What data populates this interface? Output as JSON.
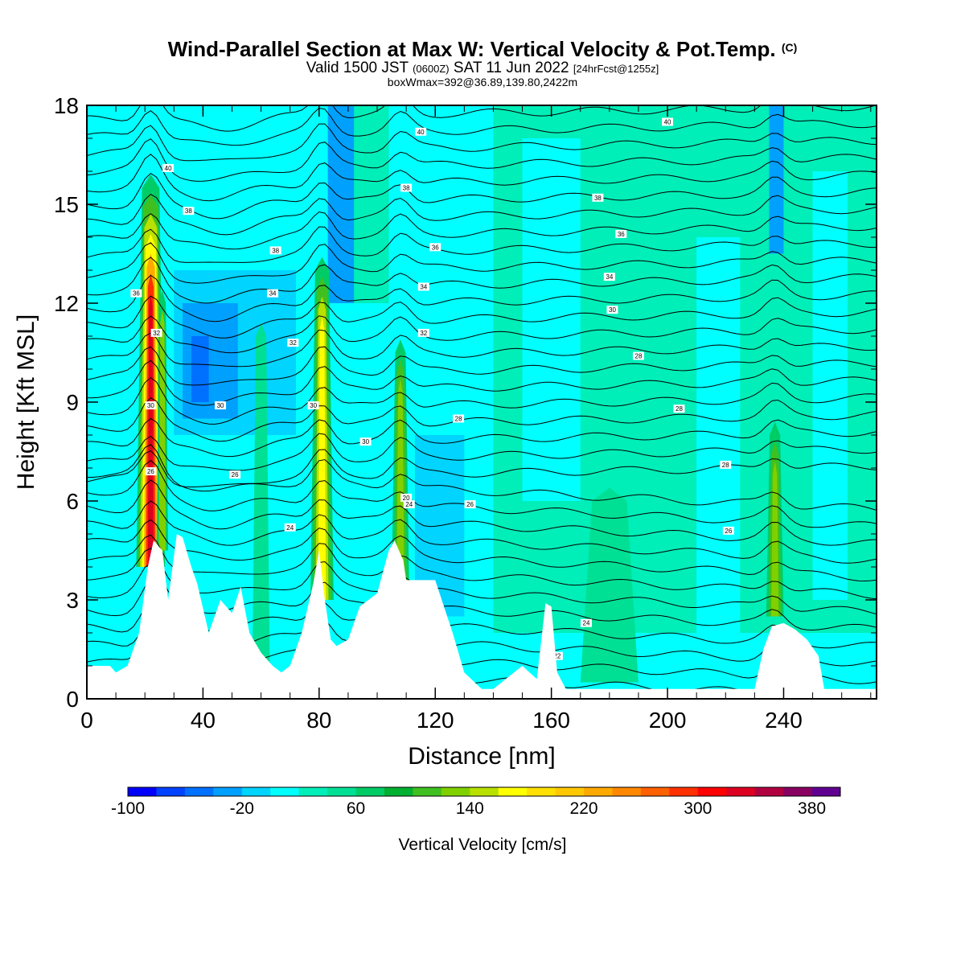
{
  "title": {
    "main": "Wind-Parallel Section at Max W: Vertical Velocity & Pot.Temp.",
    "copyright": "(C)",
    "valid_prefix": "Valid 1500 JST",
    "valid_utc": "(0600Z)",
    "valid_date": "SAT 11 Jun 2022",
    "forecast": "[24hrFcst@1255z]",
    "box_info": "boxWmax=392@36.89,139.80,2422m"
  },
  "chart_data": {
    "type": "heatmap",
    "xlabel": "Distance [nm]",
    "ylabel": "Height [Kft MSL]",
    "xlim": [
      0,
      272
    ],
    "ylim": [
      0,
      18
    ],
    "x_ticks": [
      0,
      40,
      80,
      120,
      160,
      200,
      240
    ],
    "y_ticks": [
      0,
      3,
      6,
      9,
      12,
      15,
      18
    ],
    "colorbar": {
      "title": "Vertical Velocity [cm/s]",
      "tick_labels": [
        -100,
        -20,
        60,
        140,
        220,
        300,
        380
      ],
      "bounds": [
        -100,
        400
      ],
      "step": 20,
      "colors": [
        "#0000ff",
        "#0040ff",
        "#0070ff",
        "#00a0ff",
        "#00d4ff",
        "#00ffff",
        "#00eeb8",
        "#00e095",
        "#00cc66",
        "#00b030",
        "#40c020",
        "#80d000",
        "#b8e000",
        "#ffff00",
        "#ffe000",
        "#ffc800",
        "#ffaa00",
        "#ff8800",
        "#ff6000",
        "#ff3000",
        "#ff0000",
        "#dd0020",
        "#b00040",
        "#880060",
        "#600090"
      ]
    },
    "theta_contours": {
      "labels": [
        "40",
        "40",
        "40",
        "38",
        "38",
        "38",
        "38",
        "36",
        "36",
        "36",
        "34",
        "34",
        "34",
        "32",
        "32",
        "32",
        "30",
        "30",
        "30",
        "30",
        "30",
        "28",
        "28",
        "28",
        "28",
        "26",
        "26",
        "26",
        "26",
        "24",
        "24",
        "24",
        "22",
        "20"
      ]
    }
  }
}
